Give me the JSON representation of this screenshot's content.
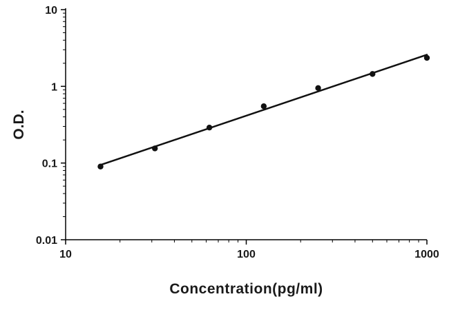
{
  "chart_data": {
    "type": "scatter",
    "title": "",
    "xlabel": "Concentration(pg/ml)",
    "ylabel": "O.D.",
    "x_scale": "log",
    "y_scale": "log",
    "xlim": [
      10,
      1000
    ],
    "ylim": [
      0.01,
      10
    ],
    "x_ticks": [
      10,
      100,
      1000
    ],
    "y_ticks": [
      0.01,
      0.1,
      1,
      10
    ],
    "x_tick_labels": [
      "10",
      "100",
      "1000"
    ],
    "y_tick_labels": [
      "0.01",
      "0.1",
      "1",
      "10"
    ],
    "grid": false,
    "legend": "none",
    "trendline": true,
    "points": [
      {
        "x": 15.6,
        "y": 0.09
      },
      {
        "x": 31.2,
        "y": 0.155
      },
      {
        "x": 62.5,
        "y": 0.29
      },
      {
        "x": 125,
        "y": 0.55
      },
      {
        "x": 250,
        "y": 0.95
      },
      {
        "x": 500,
        "y": 1.45
      },
      {
        "x": 1000,
        "y": 2.35
      }
    ],
    "colors": {
      "axis": "#000000",
      "line": "#111111",
      "marker": "#111111",
      "tick_text": "#1a1a1a"
    }
  }
}
